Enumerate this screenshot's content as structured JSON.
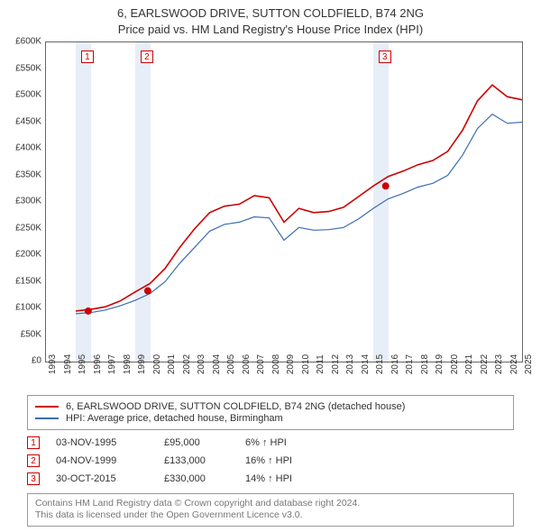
{
  "title_line1": "6, EARLSWOOD DRIVE, SUTTON COLDFIELD, B74 2NG",
  "title_line2": "Price paid vs. HM Land Registry's House Price Index (HPI)",
  "chart": {
    "type": "line",
    "xmin": 1993,
    "xmax": 2025,
    "ymin": 0,
    "ymax": 600000,
    "ytick_step": 50000,
    "yprefix": "£",
    "years": [
      1993,
      1994,
      1995,
      1996,
      1997,
      1998,
      1999,
      2000,
      2001,
      2002,
      2003,
      2004,
      2005,
      2006,
      2007,
      2008,
      2009,
      2010,
      2011,
      2012,
      2013,
      2014,
      2015,
      2016,
      2017,
      2018,
      2019,
      2020,
      2021,
      2022,
      2023,
      2024,
      2025
    ],
    "band_pairs": [
      [
        1995,
        1996
      ],
      [
        1999,
        2000
      ],
      [
        2015,
        2016
      ]
    ],
    "band_color": "#e7eef7",
    "grid_color": "#666666",
    "background_color": "#ffffff",
    "series": {
      "property": {
        "color": "#cc0000",
        "width": 1.6,
        "label": "6, EARLSWOOD DRIVE, SUTTON COLDFIELD, B74 2NG (detached house)",
        "x": [
          1995,
          1996,
          1997,
          1998,
          1999,
          2000,
          2001,
          2002,
          2003,
          2004,
          2005,
          2006,
          2007,
          2008,
          2009,
          2010,
          2011,
          2012,
          2013,
          2014,
          2015,
          2016,
          2017,
          2018,
          2019,
          2020,
          2021,
          2022,
          2023,
          2024,
          2025
        ],
        "y": [
          95000,
          98000,
          103000,
          114000,
          131000,
          147000,
          175000,
          215000,
          250000,
          280000,
          292000,
          296000,
          312000,
          308000,
          262000,
          288000,
          280000,
          282000,
          290000,
          310000,
          330000,
          348000,
          358000,
          370000,
          378000,
          395000,
          435000,
          490000,
          520000,
          498000,
          492000
        ]
      },
      "hpi": {
        "color": "#3b6db3",
        "width": 1.2,
        "label": "HPI: Average price, detached house, Birmingham",
        "x": [
          1995,
          1996,
          1997,
          1998,
          1999,
          2000,
          2001,
          2002,
          2003,
          2004,
          2005,
          2006,
          2007,
          2008,
          2009,
          2010,
          2011,
          2012,
          2013,
          2014,
          2015,
          2016,
          2017,
          2018,
          2019,
          2020,
          2021,
          2022,
          2023,
          2024,
          2025
        ],
        "y": [
          90000,
          92000,
          97000,
          105000,
          115000,
          128000,
          150000,
          185000,
          215000,
          245000,
          258000,
          262000,
          272000,
          270000,
          228000,
          252000,
          247000,
          248000,
          252000,
          268000,
          288000,
          306000,
          316000,
          328000,
          335000,
          350000,
          388000,
          438000,
          465000,
          448000,
          450000
        ]
      }
    },
    "sale_markers": [
      {
        "n": "1",
        "year": 1995.84,
        "price": 95000
      },
      {
        "n": "2",
        "year": 1999.84,
        "price": 133000
      },
      {
        "n": "3",
        "year": 2015.83,
        "price": 330000
      }
    ],
    "marker_dot_color": "#cc0000",
    "marker_box_border": "#cc0000"
  },
  "events": [
    {
      "n": "1",
      "date": "03-NOV-1995",
      "price": "£95,000",
      "pct": "6% ↑ HPI"
    },
    {
      "n": "2",
      "date": "04-NOV-1999",
      "price": "£133,000",
      "pct": "16% ↑ HPI"
    },
    {
      "n": "3",
      "date": "30-OCT-2015",
      "price": "£330,000",
      "pct": "14% ↑ HPI"
    }
  ],
  "footnote_line1": "Contains HM Land Registry data © Crown copyright and database right 2024.",
  "footnote_line2": "This data is licensed under the Open Government Licence v3.0."
}
